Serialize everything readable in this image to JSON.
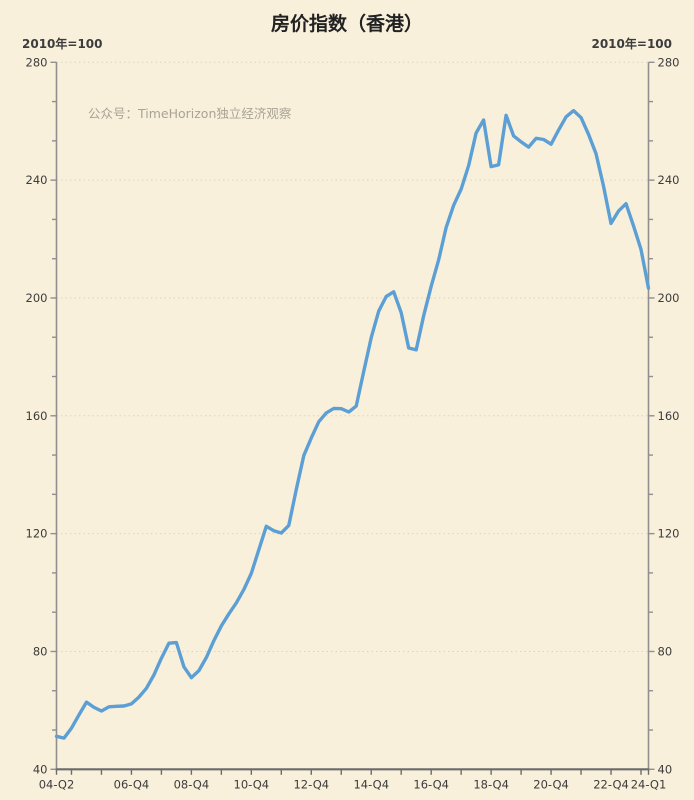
{
  "title": "房价指数（香港）",
  "axis_note_left": "2010年=100",
  "axis_note_right": "2010年=100",
  "watermark": "公众号：TimeHorizon独立经济观察",
  "chart_data": {
    "type": "line",
    "title": "房价指数（香港）",
    "unit_note": "2010年=100",
    "ylim": [
      40,
      280
    ],
    "ytick_step": 40,
    "ytick_labels": [
      "40",
      "80",
      "120",
      "160",
      "200",
      "240",
      "280"
    ],
    "grid": "dotted horizontal lines at 40-unit steps",
    "legend_position": "none",
    "x_tick_labels": [
      "04-Q2",
      "06-Q4",
      "08-Q4",
      "10-Q4",
      "12-Q4",
      "14-Q4",
      "16-Q4",
      "18-Q4",
      "20-Q4",
      "22-Q4",
      "24-Q1"
    ],
    "series": [
      {
        "name": "房价指数(香港)",
        "x": [
          "04-Q2",
          "04-Q3",
          "04-Q4",
          "05-Q1",
          "05-Q2",
          "05-Q3",
          "05-Q4",
          "06-Q1",
          "06-Q2",
          "06-Q3",
          "06-Q4",
          "07-Q1",
          "07-Q2",
          "07-Q3",
          "07-Q4",
          "08-Q1",
          "08-Q2",
          "08-Q3",
          "08-Q4",
          "09-Q1",
          "09-Q2",
          "09-Q3",
          "09-Q4",
          "10-Q1",
          "10-Q2",
          "10-Q3",
          "10-Q4",
          "11-Q1",
          "11-Q2",
          "11-Q3",
          "11-Q4",
          "12-Q1",
          "12-Q2",
          "12-Q3",
          "12-Q4",
          "13-Q1",
          "13-Q2",
          "13-Q3",
          "13-Q4",
          "14-Q1",
          "14-Q2",
          "14-Q3",
          "14-Q4",
          "15-Q1",
          "15-Q2",
          "15-Q3",
          "15-Q4",
          "16-Q1",
          "16-Q2",
          "16-Q3",
          "16-Q4",
          "17-Q1",
          "17-Q2",
          "17-Q3",
          "17-Q4",
          "18-Q1",
          "18-Q2",
          "18-Q3",
          "18-Q4",
          "19-Q1",
          "19-Q2",
          "19-Q3",
          "19-Q4",
          "20-Q1",
          "20-Q2",
          "20-Q3",
          "20-Q4",
          "21-Q1",
          "21-Q2",
          "21-Q3",
          "21-Q4",
          "22-Q1",
          "22-Q2",
          "22-Q3",
          "22-Q4",
          "23-Q1",
          "23-Q2",
          "23-Q3",
          "23-Q4",
          "24-Q1"
        ],
        "values": [
          51.2,
          50.6,
          54.0,
          58.5,
          62.8,
          61.0,
          59.8,
          61.2,
          61.4,
          61.5,
          62.2,
          64.5,
          67.5,
          72.0,
          77.7,
          82.8,
          83.0,
          74.8,
          71.1,
          73.5,
          78.0,
          83.7,
          88.7,
          92.8,
          96.5,
          101.0,
          106.5,
          114.5,
          122.5,
          121.0,
          120.2,
          122.8,
          135.0,
          146.5,
          152.5,
          158.0,
          161.0,
          162.5,
          162.4,
          161.3,
          163.3,
          175.0,
          186.5,
          195.5,
          200.5,
          202.1,
          195.0,
          183.0,
          182.4,
          194.0,
          204.0,
          213.0,
          224.0,
          231.5,
          237.0,
          245.0,
          256.0,
          260.4,
          244.6,
          245.2,
          262.0,
          255.0,
          253.0,
          251.2,
          254.2,
          253.8,
          252.2,
          257.0,
          261.5,
          263.6,
          261.2,
          255.5,
          249.0,
          238.0,
          225.3,
          229.5,
          232.0,
          224.5,
          216.5,
          203.3
        ]
      }
    ],
    "colors": {
      "line": "#5b9fd4",
      "background": "#f9f0dc",
      "grid": "#ddd3c0",
      "axis": "#8f8f8f",
      "axis_bottom": "#6b6b6b",
      "text": "#3c3c3c",
      "title": "#222222",
      "watermark": "#a9a396"
    }
  }
}
